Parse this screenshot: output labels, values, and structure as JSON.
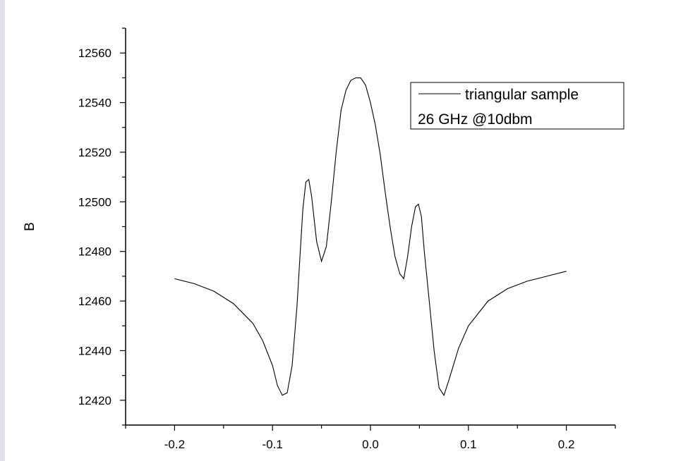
{
  "chart_data": {
    "type": "line",
    "title": "",
    "xlabel": "",
    "ylabel": "B",
    "xlim": [
      -0.25,
      0.25
    ],
    "ylim": [
      12410,
      12570
    ],
    "x_ticks": [
      -0.2,
      -0.1,
      0.0,
      0.1,
      0.2
    ],
    "x_tick_labels": [
      "-0.2",
      "-0.1",
      "0.0",
      "0.1",
      "0.2"
    ],
    "y_ticks": [
      12420,
      12440,
      12460,
      12480,
      12500,
      12520,
      12540,
      12560
    ],
    "y_tick_labels": [
      "12420",
      "12440",
      "12460",
      "12480",
      "12500",
      "12520",
      "12540",
      "12560"
    ],
    "grid": false,
    "legend_position": "top-right",
    "legend_entries": [
      "triangular sample",
      "26 GHz @10dbm"
    ],
    "series": [
      {
        "name": "triangular sample",
        "color": "#000000",
        "x": [
          -0.2,
          -0.18,
          -0.16,
          -0.14,
          -0.12,
          -0.11,
          -0.1,
          -0.095,
          -0.09,
          -0.085,
          -0.08,
          -0.075,
          -0.072,
          -0.069,
          -0.066,
          -0.063,
          -0.06,
          -0.055,
          -0.05,
          -0.045,
          -0.04,
          -0.035,
          -0.03,
          -0.025,
          -0.02,
          -0.015,
          -0.01,
          -0.005,
          0.0,
          0.005,
          0.01,
          0.015,
          0.02,
          0.025,
          0.03,
          0.034,
          0.038,
          0.042,
          0.046,
          0.049,
          0.052,
          0.055,
          0.06,
          0.065,
          0.07,
          0.075,
          0.08,
          0.09,
          0.1,
          0.12,
          0.14,
          0.16,
          0.18,
          0.2
        ],
        "y": [
          12469,
          12467,
          12464,
          12459,
          12451,
          12444,
          12434,
          12426,
          12422,
          12423,
          12434,
          12458,
          12478,
          12497,
          12508,
          12509,
          12502,
          12484,
          12476,
          12482,
          12500,
          12520,
          12537,
          12545,
          12549,
          12550,
          12550,
          12547,
          12540,
          12531,
          12519,
          12504,
          12490,
          12478,
          12471,
          12469,
          12478,
          12490,
          12498,
          12499,
          12494,
          12480,
          12460,
          12440,
          12425,
          12422,
          12428,
          12441,
          12450,
          12460,
          12465,
          12468,
          12470,
          12472
        ]
      }
    ]
  }
}
